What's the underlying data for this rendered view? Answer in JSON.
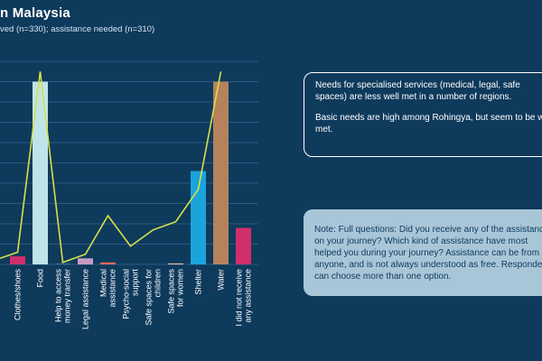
{
  "header": {
    "title": "n Malaysia",
    "subtitle": "ved (n=330); assistance needed (n=310)"
  },
  "box_top": {
    "line1": "Needs for specialised services (medical, legal, safe spaces) are less well met in a number of regions.",
    "line2": "Basic needs are high among Rohingya, but seem to be well met."
  },
  "box_bottom": {
    "text": "Note: Full questions: Did you receive any of the assistance on your journey? Which kind of assistance have most helped you during your journey? Assistance can be from anyone, and is not always understood as free. Respondents can choose more than one option."
  },
  "colors": {
    "background": "#0e3a5c",
    "line": "#d6e04a",
    "grid": "#2a5a80",
    "bars": [
      "#d12f6b",
      "#c0e4ea",
      "#3c6f96",
      "#c79bc1",
      "#e36a5b",
      "#ff8a6e",
      "#4da89a",
      "#f3b8b2",
      "#1ba3dc",
      "#b5825c"
    ]
  },
  "chart_data": {
    "type": "bar",
    "categories": [
      "Clothes/shoes",
      "Food",
      "Help to access money transfer",
      "Legal assistance",
      "Medical assistance",
      "Psycho-social support",
      "Safe spaces for children",
      "Safe spaces for women",
      "Shelter",
      "Water",
      "I did not receive any assistance"
    ],
    "series": [
      {
        "type": "bar",
        "values": [
          4,
          90,
          0.5,
          3,
          1,
          0,
          0,
          0.5,
          46,
          90,
          18
        ]
      },
      {
        "type": "line",
        "values": [
          6,
          95,
          1,
          5,
          24,
          9,
          17,
          21,
          37,
          95,
          null
        ]
      }
    ],
    "ylim": [
      0,
      100
    ],
    "grid": true
  }
}
